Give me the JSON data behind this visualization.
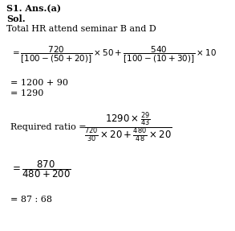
{
  "bg_color": "#ffffff",
  "text_color": "#000000",
  "bold_lines": [
    "S1. Ans.(a)",
    "Sol."
  ],
  "normal_line": "Total HR attend seminar B and D",
  "eq1": "= \\dfrac{720}{[100-(50+20)]} \\times 50 + \\dfrac{540}{[100-(10+30)]} \\times 10",
  "eq2": "= 1200 + 90",
  "eq3": "= 1290",
  "eq4_label": "Required ratio = ",
  "eq4_frac": "\\dfrac{1290\\times\\frac{29}{43}}{\\frac{720}{30}\\times20+\\frac{480}{48}\\times20}",
  "eq5": "= \\dfrac{870}{480+200}",
  "eq6": "= 87 : 68"
}
